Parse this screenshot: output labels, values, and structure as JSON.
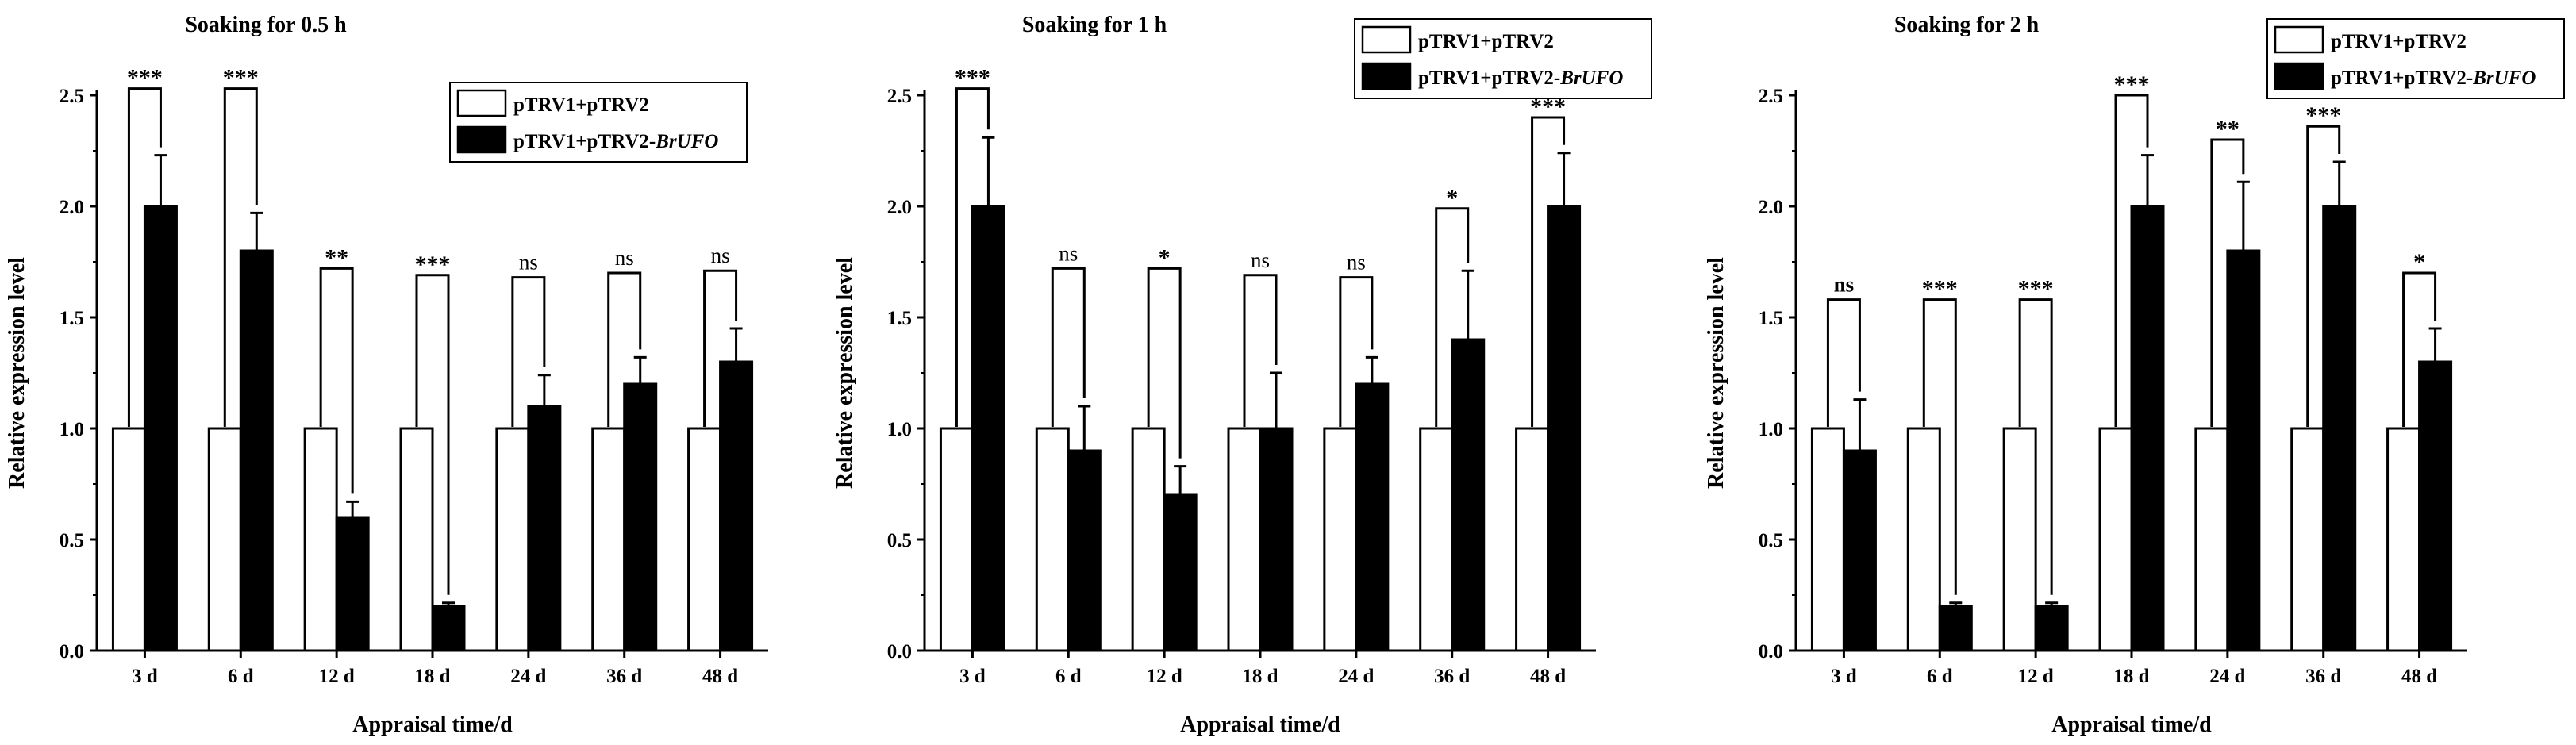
{
  "figure": {
    "panels": [
      {
        "title": "Soaking for 0.5 h"
      },
      {
        "title": "Soaking for 1 h"
      },
      {
        "title": "Soaking for 2 h"
      }
    ]
  },
  "chart_data": [
    {
      "type": "bar",
      "title": "Soaking for 0.5 h",
      "xlabel": "Appraisal time/d",
      "ylabel": "Relative expression level",
      "categories": [
        "3 d",
        "6 d",
        "12 d",
        "18 d",
        "24 d",
        "36 d",
        "48 d"
      ],
      "ylim": [
        0,
        2.5
      ],
      "yticks": [
        "0.0",
        "0.5",
        "1.0",
        "1.5",
        "2.0",
        "2.5"
      ],
      "legend_position": "top-right",
      "series": [
        {
          "name": "pTRV1+pTRV2",
          "color": "#ffffff",
          "values": [
            1,
            1,
            1,
            1,
            1,
            1,
            1
          ]
        },
        {
          "name": "pTRV1+pTRV2-BrUFO",
          "name_plain": "pTRV1+pTRV2-",
          "name_italic": "BrUFO",
          "color": "#000000",
          "values": [
            2.0,
            1.8,
            0.6,
            0.2,
            1.1,
            1.2,
            1.3
          ],
          "errors": [
            0.23,
            0.17,
            0.07,
            0.015,
            0.14,
            0.12,
            0.15
          ]
        }
      ],
      "significance": [
        "***",
        "***",
        "**",
        "***",
        "ns",
        "ns",
        "ns"
      ],
      "bracket_tops": [
        2.53,
        2.53,
        1.72,
        1.69,
        1.68,
        1.7,
        1.71
      ]
    },
    {
      "type": "bar",
      "title": "Soaking for 1 h",
      "xlabel": "Appraisal time/d",
      "ylabel": "Relative expression level",
      "categories": [
        "3 d",
        "6 d",
        "12 d",
        "18 d",
        "24 d",
        "36 d",
        "48 d"
      ],
      "ylim": [
        0,
        2.5
      ],
      "yticks": [
        "0.0",
        "0.5",
        "1.0",
        "1.5",
        "2.0",
        "2.5"
      ],
      "legend_position": "top-right",
      "series": [
        {
          "name": "pTRV1+pTRV2",
          "color": "#ffffff",
          "values": [
            1,
            1,
            1,
            1,
            1,
            1,
            1
          ]
        },
        {
          "name": "pTRV1+pTRV2-BrUFO",
          "name_plain": "pTRV1+pTRV2-",
          "name_italic": "BrUFO",
          "color": "#000000",
          "values": [
            2.0,
            0.9,
            0.7,
            1.0,
            1.2,
            1.4,
            2.0
          ],
          "errors": [
            0.31,
            0.2,
            0.13,
            0.25,
            0.12,
            0.31,
            0.24
          ]
        }
      ],
      "significance": [
        "***",
        "ns",
        "*",
        "ns",
        "ns",
        "*",
        "***"
      ],
      "bracket_tops": [
        2.53,
        1.72,
        1.72,
        1.69,
        1.68,
        1.99,
        2.4
      ]
    },
    {
      "type": "bar",
      "title": "Soaking for 2 h",
      "xlabel": "Appraisal time/d",
      "ylabel": "Relative expression level",
      "categories": [
        "3 d",
        "6 d",
        "12 d",
        "18 d",
        "24 d",
        "36 d",
        "48 d"
      ],
      "ylim": [
        0,
        2.5
      ],
      "yticks": [
        "0.0",
        "0.5",
        "1.0",
        "1.5",
        "2.0",
        "2.5"
      ],
      "legend_position": "top-right",
      "series": [
        {
          "name": "pTRV1+pTRV2",
          "color": "#ffffff",
          "values": [
            1,
            1,
            1,
            1,
            1,
            1,
            1
          ]
        },
        {
          "name": "pTRV1+pTRV2-BrUFO",
          "name_plain": "pTRV1+pTRV2-",
          "name_italic": "BrUFO",
          "color": "#000000",
          "values": [
            0.9,
            0.2,
            0.2,
            2.0,
            1.8,
            2.0,
            1.3
          ],
          "errors": [
            0.23,
            0.015,
            0.015,
            0.23,
            0.31,
            0.2,
            0.15
          ]
        }
      ],
      "significance": [
        "ns",
        "***",
        "***",
        "***",
        "**",
        "***",
        "*"
      ],
      "bracket_tops": [
        1.58,
        1.58,
        1.58,
        2.5,
        2.3,
        2.36,
        1.7
      ]
    }
  ]
}
